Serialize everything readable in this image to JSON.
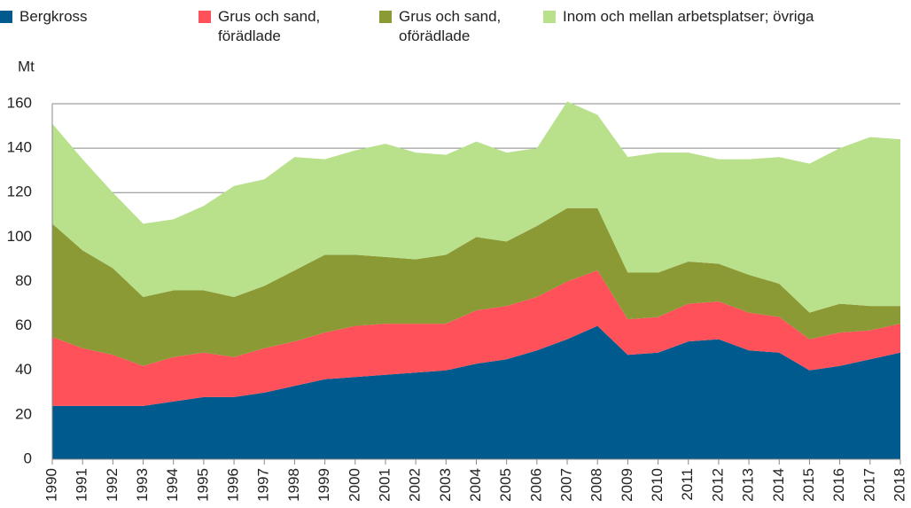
{
  "chart_data": {
    "type": "stacked_area",
    "y_label": "Mt",
    "x": [
      1990,
      1991,
      1992,
      1993,
      1994,
      1995,
      1996,
      1997,
      1998,
      1999,
      2000,
      2001,
      2002,
      2003,
      2004,
      2005,
      2006,
      2007,
      2008,
      2009,
      2010,
      2011,
      2012,
      2013,
      2014,
      2015,
      2016,
      2017,
      2018
    ],
    "xlim": [
      1990,
      2018
    ],
    "xticks": [
      1990,
      1991,
      1992,
      1993,
      1994,
      1995,
      1996,
      1997,
      1998,
      1999,
      2000,
      2001,
      2002,
      2003,
      2004,
      2005,
      2006,
      2007,
      2008,
      2009,
      2010,
      2011,
      2012,
      2013,
      2014,
      2015,
      2016,
      2017,
      2018
    ],
    "ylim": [
      0,
      160
    ],
    "yticks": [
      0,
      20,
      40,
      60,
      80,
      100,
      120,
      140,
      160
    ],
    "grid": true,
    "series": [
      {
        "name": "Bergkross",
        "color": "#005a8e",
        "values": [
          24,
          24,
          24,
          24,
          26,
          28,
          28,
          30,
          33,
          36,
          37,
          38,
          39,
          40,
          43,
          45,
          49,
          54,
          60,
          47,
          48,
          53,
          54,
          49,
          48,
          40,
          42,
          45,
          48
        ]
      },
      {
        "name": "Grus och sand, förädlade",
        "color": "#ff515a",
        "values": [
          31,
          26,
          23,
          18,
          20,
          20,
          18,
          20,
          20,
          21,
          23,
          23,
          22,
          21,
          24,
          24,
          24,
          26,
          25,
          16,
          16,
          17,
          17,
          17,
          16,
          14,
          15,
          13,
          13
        ]
      },
      {
        "name": "Grus och sand, oförädlade",
        "color": "#8c9a35",
        "values": [
          51,
          44,
          39,
          31,
          30,
          28,
          27,
          28,
          32,
          35,
          32,
          30,
          29,
          31,
          33,
          29,
          32,
          33,
          28,
          21,
          20,
          19,
          17,
          17,
          15,
          12,
          13,
          11,
          8
        ]
      },
      {
        "name": "Inom och mellan arbetsplatser; övriga",
        "color": "#b9e08b",
        "values": [
          45,
          41,
          34,
          33,
          32,
          38,
          50,
          48,
          51,
          43,
          47,
          51,
          48,
          45,
          43,
          40,
          35,
          48,
          42,
          52,
          54,
          49,
          47,
          52,
          57,
          67,
          70,
          76,
          75
        ]
      }
    ]
  }
}
